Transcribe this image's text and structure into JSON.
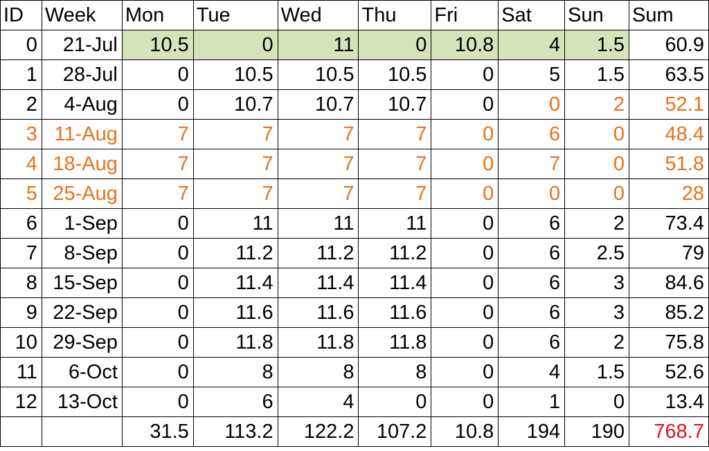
{
  "colors": {
    "highlight": "#d6e4bc",
    "orange_text": "#e8711a",
    "red_total": "#e0101e"
  },
  "headers": [
    "ID",
    "Week",
    "Mon",
    "Tue",
    "Wed",
    "Thu",
    "Fri",
    "Sat",
    "Sun",
    "Sum"
  ],
  "rows": [
    [
      "0",
      "21-Jul",
      "10.5",
      "0",
      "11",
      "0",
      "10.8",
      "4",
      "1.5",
      "60.9"
    ],
    [
      "1",
      "28-Jul",
      "0",
      "10.5",
      "10.5",
      "10.5",
      "0",
      "5",
      "1.5",
      "63.5"
    ],
    [
      "2",
      "4-Aug",
      "0",
      "10.7",
      "10.7",
      "10.7",
      "0",
      "0",
      "2",
      "52.1"
    ],
    [
      "3",
      "11-Aug",
      "7",
      "7",
      "7",
      "7",
      "0",
      "6",
      "0",
      "48.4"
    ],
    [
      "4",
      "18-Aug",
      "7",
      "7",
      "7",
      "7",
      "0",
      "7",
      "0",
      "51.8"
    ],
    [
      "5",
      "25-Aug",
      "7",
      "7",
      "7",
      "7",
      "0",
      "0",
      "0",
      "28"
    ],
    [
      "6",
      "1-Sep",
      "0",
      "11",
      "11",
      "11",
      "0",
      "6",
      "2",
      "73.4"
    ],
    [
      "7",
      "8-Sep",
      "0",
      "11.2",
      "11.2",
      "11.2",
      "0",
      "6",
      "2.5",
      "79"
    ],
    [
      "8",
      "15-Sep",
      "0",
      "11.4",
      "11.4",
      "11.4",
      "0",
      "6",
      "3",
      "84.6"
    ],
    [
      "9",
      "22-Sep",
      "0",
      "11.6",
      "11.6",
      "11.6",
      "0",
      "6",
      "3",
      "85.2"
    ],
    [
      "10",
      "29-Sep",
      "0",
      "11.8",
      "11.8",
      "11.8",
      "0",
      "6",
      "2",
      "75.8"
    ],
    [
      "11",
      "6-Oct",
      "0",
      "8",
      "8",
      "8",
      "0",
      "4",
      "1.5",
      "52.6"
    ],
    [
      "12",
      "13-Oct",
      "0",
      "6",
      "4",
      "0",
      "0",
      "1",
      "0",
      "13.4"
    ]
  ],
  "totals": [
    "",
    "",
    "31.5",
    "113.2",
    "122.2",
    "107.2",
    "10.8",
    "194",
    "190",
    "768.7"
  ]
}
